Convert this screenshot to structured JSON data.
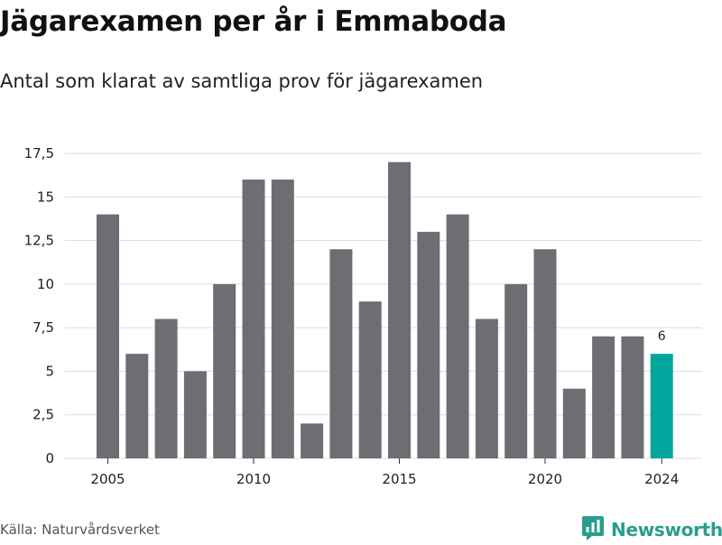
{
  "header": {
    "title": "Jägarexamen per år i Emmaboda",
    "subtitle": "Antal som klarat av samtliga prov för jägarexamen"
  },
  "footer": {
    "source": "Källa: Naturvårdsverket",
    "brand": "Newsworthy",
    "brand_icon": "bar-chart-speech-bubble-icon"
  },
  "colors": {
    "bar": "#6e6d73",
    "highlight": "#00a69c",
    "grid": "#dedede",
    "brand": "#2a9d8f"
  },
  "chart_data": {
    "type": "bar",
    "x": [
      2005,
      2006,
      2007,
      2008,
      2009,
      2010,
      2011,
      2012,
      2013,
      2014,
      2015,
      2016,
      2017,
      2018,
      2019,
      2020,
      2021,
      2022,
      2023,
      2024
    ],
    "values": [
      14,
      6,
      8,
      5,
      10,
      16,
      16,
      2,
      12,
      9,
      17,
      13,
      14,
      8,
      10,
      12,
      4,
      7,
      7,
      6
    ],
    "highlight_x": 2024,
    "data_labels": [
      {
        "x": 2024,
        "text": "6"
      }
    ],
    "ylim": [
      0,
      17.5
    ],
    "y_ticks": [
      "0",
      "2,5",
      "5",
      "7,5",
      "10",
      "12,5",
      "15",
      "17,5"
    ],
    "x_ticks": [
      "2005",
      "2010",
      "2015",
      "2020",
      "2024"
    ],
    "grid": "horizontal",
    "legend": "none"
  }
}
